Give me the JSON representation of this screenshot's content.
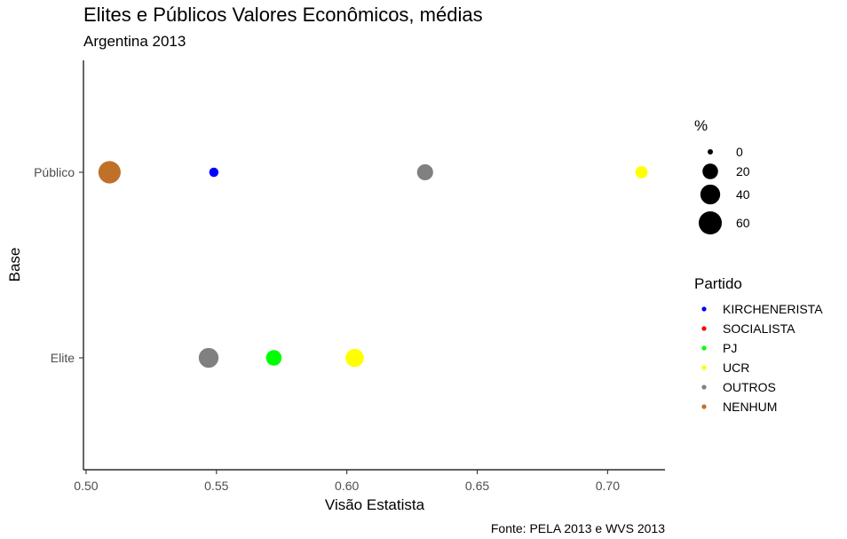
{
  "chart_data": {
    "type": "scatter",
    "title": "Elites e Públicos Valores Econômicos, médias",
    "subtitle": "Argentina 2013",
    "xlabel": "Visão Estatista",
    "ylabel": "Base",
    "caption": "Fonte: PELA 2013 e WVS 2013",
    "xlim": [
      0.499,
      0.722
    ],
    "x_ticks": [
      0.5,
      0.55,
      0.6,
      0.65,
      0.7
    ],
    "x_tick_labels": [
      "0.50",
      "0.55",
      "0.60",
      "0.65",
      "0.70"
    ],
    "categories": [
      "Público",
      "Elite"
    ],
    "grid": false,
    "size_legend": {
      "title": "%",
      "values": [
        0,
        20,
        40,
        60
      ],
      "labels": [
        "0",
        "20",
        "40",
        "60"
      ]
    },
    "color_legend": {
      "title": "Partido",
      "entries": [
        {
          "label": "KIRCHENERISTA",
          "color": "#0000ff"
        },
        {
          "label": "SOCIALISTA",
          "color": "#ff0000"
        },
        {
          "label": "PJ",
          "color": "#00ff00"
        },
        {
          "label": "UCR",
          "color": "#ffff00"
        },
        {
          "label": "OUTROS",
          "color": "#808080"
        },
        {
          "label": "NENHUM",
          "color": "#c07028"
        }
      ]
    },
    "points": [
      {
        "base": "Público",
        "partido": "NENHUM",
        "x": 0.509,
        "pct": 55
      },
      {
        "base": "Público",
        "partido": "KIRCHENERISTA",
        "x": 0.549,
        "pct": 3
      },
      {
        "base": "Público",
        "partido": "OUTROS",
        "x": 0.63,
        "pct": 22
      },
      {
        "base": "Público",
        "partido": "UCR",
        "x": 0.713,
        "pct": 9
      },
      {
        "base": "Elite",
        "partido": "OUTROS",
        "x": 0.547,
        "pct": 40
      },
      {
        "base": "Elite",
        "partido": "PJ",
        "x": 0.572,
        "pct": 20
      },
      {
        "base": "Elite",
        "partido": "UCR",
        "x": 0.603,
        "pct": 32
      }
    ],
    "legend_position": "right"
  }
}
